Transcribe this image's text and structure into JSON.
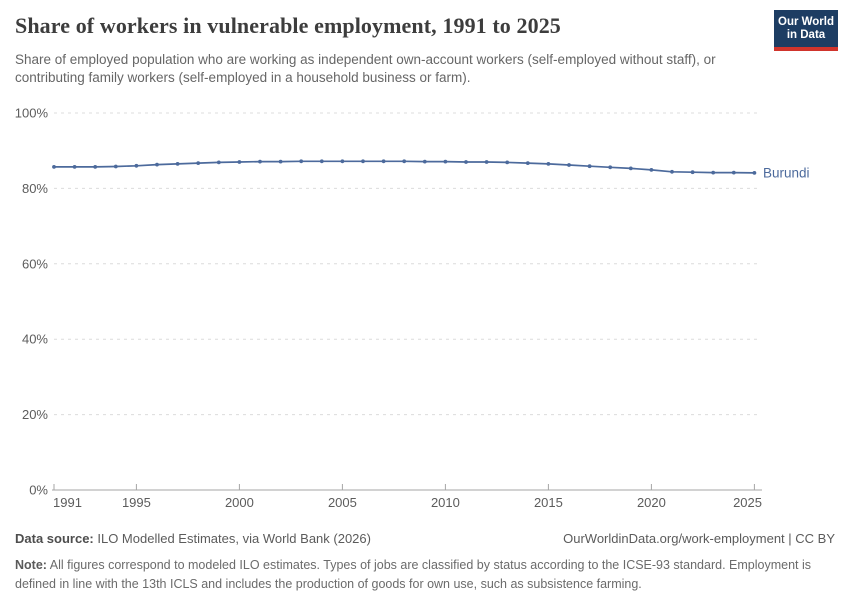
{
  "header": {
    "title": "Share of workers in vulnerable employment, 1991 to 2025",
    "subtitle": "Share of employed population who are working as independent own-account workers (self-employed without staff), or contributing family workers (self-employed in a household business or farm).",
    "logo": {
      "line1": "Our World",
      "line2": "in Data",
      "bg_color": "#1d3d63",
      "bar_color": "#d0342c"
    }
  },
  "chart_data": {
    "type": "line",
    "title": "Share of workers in vulnerable employment, 1991 to 2025",
    "xlabel": "",
    "ylabel": "",
    "xlim": [
      1991,
      2025
    ],
    "ylim": [
      0,
      100
    ],
    "grid": "horizontal-dashed",
    "legend_position": "end-of-line",
    "x_ticks": [
      1991,
      1995,
      2000,
      2005,
      2010,
      2015,
      2020,
      2025
    ],
    "y_ticks": [
      0,
      20,
      40,
      60,
      80,
      100
    ],
    "y_tick_suffix": "%",
    "series": [
      {
        "name": "Burundi",
        "color": "#4C6A9C",
        "x": [
          1991,
          1992,
          1993,
          1994,
          1995,
          1996,
          1997,
          1998,
          1999,
          2000,
          2001,
          2002,
          2003,
          2004,
          2005,
          2006,
          2007,
          2008,
          2009,
          2010,
          2011,
          2012,
          2013,
          2014,
          2015,
          2016,
          2017,
          2018,
          2019,
          2020,
          2021,
          2022,
          2023,
          2024,
          2025
        ],
        "values": [
          85.7,
          85.7,
          85.7,
          85.8,
          86.0,
          86.3,
          86.5,
          86.7,
          86.9,
          87.0,
          87.1,
          87.1,
          87.2,
          87.2,
          87.2,
          87.2,
          87.2,
          87.2,
          87.1,
          87.1,
          87.0,
          87.0,
          86.9,
          86.7,
          86.5,
          86.2,
          85.9,
          85.6,
          85.3,
          84.9,
          84.4,
          84.3,
          84.2,
          84.2,
          84.1
        ]
      }
    ],
    "colors": {
      "grid": "#dcdcdc",
      "axis": "#a5a5a5",
      "tick_label": "#5c5c5c"
    }
  },
  "footer": {
    "datasource_label": "Data source:",
    "datasource_text": " ILO Modelled Estimates, via World Bank (2026)",
    "link_text": "OurWorldinData.org/work-employment | CC BY",
    "note_label": "Note:",
    "note_text": " All figures correspond to modeled ILO estimates. Types of jobs are classified by status according to the ICSE-93 standard. Employment is defined in line with the 13th ICLS and includes the production of goods for own use, such as subsistence farming."
  }
}
